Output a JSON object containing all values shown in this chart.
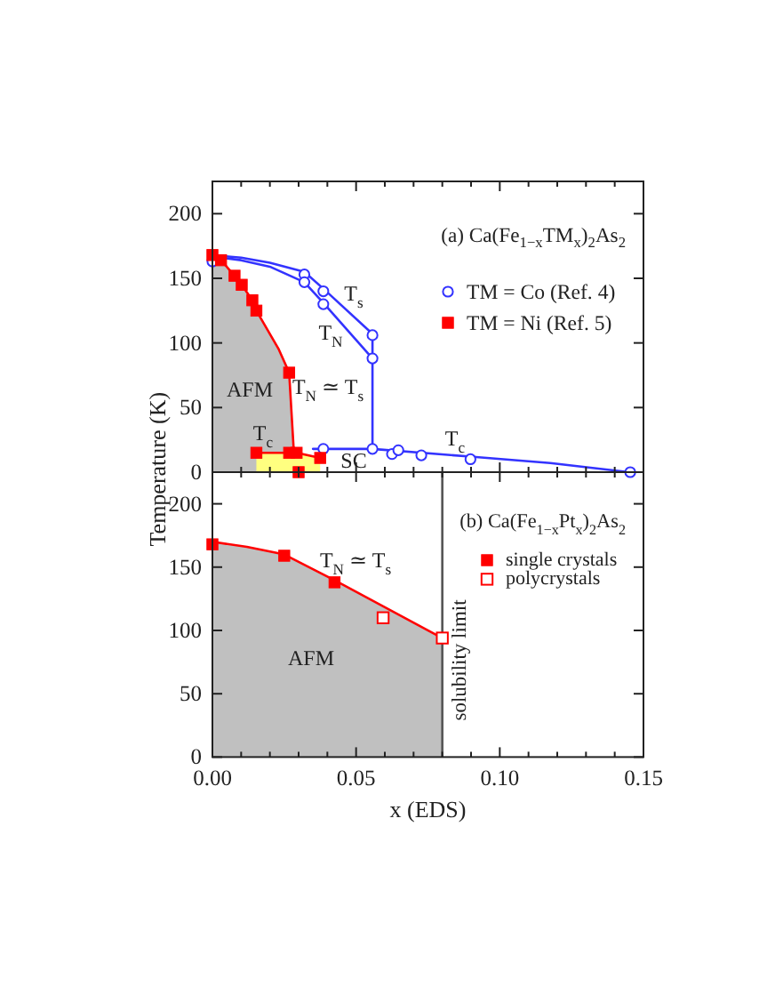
{
  "chart_data": [
    {
      "type": "scatter",
      "title": "(a)  Ca(Fe$_{1−x}$TM$_{x}$)$_{2}$As$_{2}$",
      "ylabel": "Temperature (K)",
      "legend": "top right",
      "tick_labels": "y",
      "xlim": [
        0,
        0.15
      ],
      "xticks": [
        0,
        {
          "value": 0.01,
          "label": null
        },
        {
          "value": 0.02,
          "label": null
        },
        {
          "value": 0.03,
          "label": null
        },
        {
          "value": 0.04,
          "label": null
        },
        0.05,
        {
          "value": 0.06,
          "label": null
        },
        {
          "value": 0.07,
          "label": null
        },
        {
          "value": 0.08,
          "label": null
        },
        {
          "value": 0.09,
          "label": null
        },
        0.1,
        {
          "value": 0.11,
          "label": null
        },
        {
          "value": 0.12,
          "label": null
        },
        {
          "value": 0.13,
          "label": null
        },
        {
          "value": 0.14,
          "label": null
        },
        0.15
      ],
      "ylim": [
        0,
        225
      ],
      "yticks": [
        0,
        50,
        100,
        150,
        200
      ],
      "series": [
        {
          "name": "TM = Co (Ref. 4)",
          "color": "#3333ff",
          "marker": "circle-open",
          "x": [
            0,
            0.032,
            0.032,
            0.0386,
            0.0386,
            0.0557,
            0.0557,
            0.0386,
            0.0557,
            0.0625,
            0.0647,
            0.0727,
            0.0898,
            0.1454
          ],
          "values": [
            163,
            153,
            147,
            140,
            130,
            106,
            88,
            18,
            18,
            14,
            17,
            13,
            10,
            0
          ]
        },
        {
          "name": "TM = Ni (Ref. 5)",
          "color": "#ff0000",
          "marker": "square",
          "x": [
            0,
            0.003,
            0.0077,
            0.0102,
            0.0139,
            0.0153,
            0.0267,
            0.0153,
            0.0267,
            0.0293,
            0.0375,
            0.03
          ],
          "values": [
            168,
            164,
            152,
            145,
            133,
            125,
            77,
            15,
            15,
            15,
            11,
            0
          ]
        },
        {
          "type": "area",
          "color": "#c0c0c0",
          "x": [
            0,
            0.003,
            0.0077,
            0.0102,
            0.0139,
            0.0153,
            0.0231,
            0.0267,
            0.0283,
            0.03
          ],
          "values": [
            168,
            164,
            152,
            145,
            133,
            125,
            95,
            77,
            17,
            0
          ]
        },
        {
          "type": "area",
          "color": "#ffff80",
          "x": [
            0.0153,
            0.0267,
            0.0293,
            0.0375
          ],
          "values": [
            15,
            15,
            15,
            11
          ]
        },
        {
          "type": "line",
          "color": "#3333ff",
          "x": [
            0,
            0.01,
            0.02,
            0.032,
            0.0386,
            0.0557,
            0.0557
          ],
          "values": [
            168,
            166,
            162,
            155,
            142,
            107,
            18
          ]
        },
        {
          "type": "line",
          "color": "#3333ff",
          "x": [
            0,
            0.01,
            0.02,
            0.032,
            0.0386,
            0.0557
          ],
          "values": [
            167,
            164,
            159,
            147,
            131,
            88
          ]
        },
        {
          "type": "line",
          "color": "#3333ff",
          "x": [
            0.035,
            0.0557,
            0.0898,
            0.1176,
            0.145
          ],
          "values": [
            18,
            18,
            12,
            7,
            0
          ]
        }
      ],
      "annotations": [
        "AFM",
        "T$_{N}$ ≃ T$_{s}$",
        "T$_{s}$",
        "T$_{N}$",
        "T$_{c}$",
        "SC",
        "T$_{c}$"
      ]
    },
    {
      "type": "scatter",
      "title": "(b)  Ca(Fe$_{1−x}$Pt$_{x}$)$_{2}$As$_{2}$",
      "xlabel": "x (EDS)",
      "legend": "top right",
      "xlim": [
        0,
        0.15
      ],
      "xticks": [
        {
          "value": 0,
          "label": "0.00"
        },
        {
          "value": 0.01,
          "label": null
        },
        {
          "value": 0.02,
          "label": null
        },
        {
          "value": 0.03,
          "label": null
        },
        {
          "value": 0.04,
          "label": null
        },
        {
          "value": 0.05,
          "label": "0.05"
        },
        {
          "value": 0.06,
          "label": null
        },
        {
          "value": 0.07,
          "label": null
        },
        {
          "value": 0.08,
          "label": null
        },
        {
          "value": 0.09,
          "label": null
        },
        {
          "value": 0.1,
          "label": "0.10"
        },
        {
          "value": 0.11,
          "label": null
        },
        {
          "value": 0.12,
          "label": null
        },
        {
          "value": 0.13,
          "label": null
        },
        {
          "value": 0.14,
          "label": null
        },
        {
          "value": 0.15,
          "label": "0.15"
        }
      ],
      "ylim": [
        0,
        225
      ],
      "yticks": [
        0,
        50,
        100,
        150,
        200
      ],
      "series": [
        {
          "name": "single crystals",
          "color": "#ff0000",
          "marker": "square",
          "x": [
            0,
            0.025,
            0.0425
          ],
          "values": [
            168,
            159,
            138
          ]
        },
        {
          "name": "polycrystals",
          "color": "#ff0000",
          "marker": "square-open",
          "x": [
            0.0594,
            0.08
          ],
          "values": [
            110,
            94
          ]
        },
        {
          "type": "area",
          "color": "#c0c0c0",
          "x": [
            0,
            0.012,
            0.025,
            0.043,
            0.08
          ],
          "values": [
            170,
            166,
            160,
            139,
            94
          ]
        }
      ],
      "ref_lines": [
        {
          "axis": "x",
          "value": 0.08,
          "label": "solubility limit",
          "color": "#555555"
        }
      ],
      "annotations": [
        "T$_{N}$ ≃ T$_{s}$",
        "AFM"
      ]
    }
  ]
}
